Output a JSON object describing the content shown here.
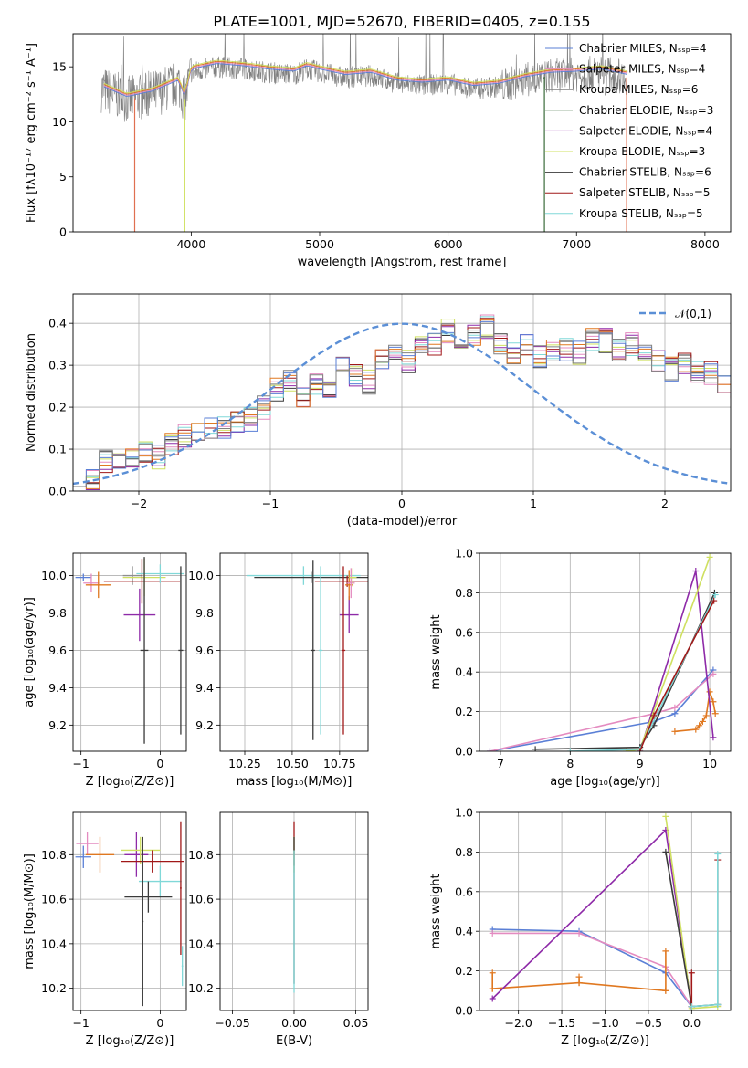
{
  "title": "PLATE=1001, MJD=52670, FIBERID=0405, z=0.155",
  "legend_colors": [
    "#5a7fd6",
    "#e48bc0",
    "#808080",
    "#3a6a3a",
    "#8e2aa8",
    "#cfe060",
    "#3a3a3a",
    "#a01818",
    "#80d8d8"
  ],
  "chart_data": [
    {
      "type": "line",
      "id": "spectrum",
      "xlabel": "wavelength [Angstrom, rest frame]",
      "ylabel": "Flux [fλ10⁻¹⁷ erg cm⁻² s⁻¹ A⁻¹]",
      "xlim": [
        3080,
        8200
      ],
      "ylim": [
        0,
        18
      ],
      "xticks": [
        "4000",
        "5000",
        "6000",
        "7000",
        "8000"
      ],
      "yticks": [
        "0",
        "5",
        "10",
        "15"
      ],
      "legend": {
        "placement": "upper-right",
        "entries": [
          "Chabrier MILES, Nₛₛₚ=4",
          "Salpeter MILES, Nₛₛₚ=4",
          "Kroupa MILES, Nₛₛₚ=6",
          "Chabrier ELODIE, Nₛₛₚ=3",
          "Salpeter ELODIE, Nₛₛₚ=4",
          "Kroupa ELODIE, Nₛₛₚ=3",
          "Chabrier STELIB, Nₛₛₚ=6",
          "Salpeter STELIB, Nₛₛₚ=5",
          "Kroupa STELIB, Nₛₛₚ=5"
        ]
      },
      "approx_continuum": {
        "x": [
          3300,
          3500,
          3700,
          3900,
          3950,
          4000,
          4200,
          4400,
          4600,
          4800,
          4900,
          5000,
          5200,
          5400,
          5600,
          5800,
          6000,
          6200,
          6400,
          6600,
          6800,
          7000,
          7200,
          7400
        ],
        "y": [
          13.0,
          12.0,
          12.5,
          13.5,
          12.0,
          14.5,
          15.0,
          14.8,
          14.5,
          14.3,
          14.8,
          14.5,
          14.0,
          14.2,
          13.5,
          13.3,
          13.5,
          13.0,
          13.2,
          13.8,
          14.2,
          14.3,
          14.5,
          14.0
        ]
      },
      "cutoffs": [
        3560,
        3950,
        6750,
        7390
      ]
    },
    {
      "type": "line",
      "id": "residual-histogram",
      "xlabel": "(data-model)/error",
      "ylabel": "Normed distribution",
      "xlim": [
        -2.5,
        2.5
      ],
      "ylim": [
        0,
        0.47
      ],
      "xticks": [
        "−2",
        "−1",
        "0",
        "1",
        "2"
      ],
      "yticks": [
        "0.0",
        "0.1",
        "0.2",
        "0.3",
        "0.4"
      ],
      "grid": true,
      "reference_curve": {
        "label": "𝒩(0,1)",
        "mean": 0,
        "sigma": 1,
        "style": "dashed",
        "color": "#5b8fd6"
      },
      "legend_placement": "upper-right",
      "histogram": {
        "bin_start": -2.5,
        "bin_width": 0.1,
        "values": [
          0.04,
          0.03,
          0.07,
          0.08,
          0.08,
          0.09,
          0.08,
          0.11,
          0.13,
          0.15,
          0.15,
          0.15,
          0.16,
          0.17,
          0.2,
          0.24,
          0.26,
          0.22,
          0.25,
          0.24,
          0.29,
          0.28,
          0.26,
          0.31,
          0.33,
          0.31,
          0.34,
          0.35,
          0.38,
          0.36,
          0.37,
          0.39,
          0.35,
          0.33,
          0.35,
          0.32,
          0.34,
          0.34,
          0.33,
          0.36,
          0.36,
          0.34,
          0.35,
          0.32,
          0.31,
          0.29,
          0.3,
          0.28,
          0.28,
          0.26,
          0.24,
          0.22,
          0.2,
          0.18,
          0.15,
          0.14,
          0.14,
          0.15,
          0.13,
          0.12,
          0.11,
          0.1,
          0.09,
          0.08,
          0.07,
          0.06,
          0.05,
          0.05,
          0.04,
          0.04
        ]
      }
    },
    {
      "type": "scatter",
      "id": "age-vs-Z",
      "xlabel": "Z [log₁₀(Z/Z⊙)]",
      "ylabel": "age  [log₁₀(age/yr)]",
      "xlim": [
        -1.1,
        0.33
      ],
      "ylim": [
        9.06,
        10.12
      ],
      "xticks": [
        "−1",
        "0"
      ],
      "yticks": [
        "9.2",
        "9.4",
        "9.6",
        "9.8",
        "10.0"
      ],
      "grid": true,
      "points": [
        {
          "x": -0.97,
          "y": 9.99,
          "xerr": 0.1,
          "yerr": 0.02,
          "color": "#5a7fd6"
        },
        {
          "x": -0.87,
          "y": 9.96,
          "xerr": 0.1,
          "yerr": 0.05,
          "color": "#e48bc0"
        },
        {
          "x": -0.78,
          "y": 9.95,
          "xerr": 0.16,
          "yerr": 0.07,
          "color": "#e07820"
        },
        {
          "x": -0.35,
          "y": 10.0,
          "xerr": 0.12,
          "yerr": 0.05,
          "color": "#8e8e8e"
        },
        {
          "x": -0.26,
          "y": 9.79,
          "xerr": 0.2,
          "yerr": 0.14,
          "color": "#8e2aa8"
        },
        {
          "x": -0.2,
          "y": 9.99,
          "xerr": 0.27,
          "yerr": 0.1,
          "color": "#cfe060"
        },
        {
          "x": -0.23,
          "y": 9.97,
          "xerr": 0.48,
          "yerr": 0.12,
          "color": "#a01818"
        },
        {
          "x": 0.0,
          "y": 10.01,
          "xerr": 0.3,
          "yerr": 0.05,
          "color": "#80d8d8"
        },
        {
          "x": -0.2,
          "y": 9.6,
          "xerr": 0.05,
          "yerr": 0.5,
          "color": "#3a3a3a"
        },
        {
          "x": 0.26,
          "y": 9.6,
          "xerr": 0.03,
          "yerr": 0.45,
          "color": "#3a3a3a"
        }
      ]
    },
    {
      "type": "scatter",
      "id": "age-vs-mass",
      "xlabel": "mass [log₁₀(M/M⊙)]",
      "xlim": [
        10.12,
        10.9
      ],
      "ylim": [
        9.06,
        10.12
      ],
      "xticks": [
        "10.25",
        "10.50",
        "10.75"
      ],
      "yticks": [
        "9.2",
        "9.4",
        "9.6",
        "9.8",
        "10.0"
      ],
      "grid": true,
      "points": [
        {
          "x": 10.56,
          "y": 10.0,
          "xerr": 0.3,
          "yerr": 0.05,
          "color": "#80d8d8"
        },
        {
          "x": 10.6,
          "y": 9.99,
          "xerr": 0.3,
          "yerr": 0.03,
          "color": "#3a3a3a"
        },
        {
          "x": 10.79,
          "y": 9.97,
          "xerr": 0.17,
          "yerr": 0.03,
          "color": "#a01818"
        },
        {
          "x": 10.8,
          "y": 9.79,
          "xerr": 0.05,
          "yerr": 0.1,
          "color": "#8e2aa8"
        },
        {
          "x": 10.8,
          "y": 9.95,
          "xerr": 0.02,
          "yerr": 0.08,
          "color": "#e07820"
        },
        {
          "x": 10.81,
          "y": 9.96,
          "xerr": 0.02,
          "yerr": 0.08,
          "color": "#e48bc0"
        },
        {
          "x": 10.82,
          "y": 9.99,
          "xerr": 0.02,
          "yerr": 0.05,
          "color": "#cfe060"
        },
        {
          "x": 10.61,
          "y": 9.6,
          "xerr": 0.01,
          "yerr": 0.48,
          "color": "#3a3a3a"
        },
        {
          "x": 10.77,
          "y": 9.6,
          "xerr": 0.01,
          "yerr": 0.45,
          "color": "#a01818"
        },
        {
          "x": 10.65,
          "y": 9.6,
          "xerr": 0.01,
          "yerr": 0.45,
          "color": "#80d8d8"
        }
      ]
    },
    {
      "type": "line",
      "id": "mass-weight-vs-age",
      "xlabel": "age  [log₁₀(age/yr)]",
      "ylabel": "mass weight",
      "xlim": [
        6.7,
        10.3
      ],
      "ylim": [
        0,
        1.0
      ],
      "xticks": [
        "7",
        "8",
        "9",
        "10"
      ],
      "yticks": [
        "0.0",
        "0.2",
        "0.4",
        "0.6",
        "0.8",
        "1.0"
      ],
      "grid": true,
      "series": [
        {
          "color": "#5a7fd6",
          "x": [
            6.85,
            9.2,
            9.5,
            10.05
          ],
          "y": [
            0.0,
            0.15,
            0.19,
            0.41
          ]
        },
        {
          "color": "#e48bc0",
          "x": [
            6.85,
            9.2,
            9.5,
            10.05
          ],
          "y": [
            0.0,
            0.19,
            0.22,
            0.39
          ]
        },
        {
          "color": "#e07820",
          "x": [
            9.5,
            9.8,
            9.85,
            9.9,
            9.95,
            10.0,
            10.05,
            10.08
          ],
          "y": [
            0.1,
            0.11,
            0.13,
            0.15,
            0.18,
            0.3,
            0.25,
            0.19
          ]
        },
        {
          "color": "#8e2aa8",
          "x": [
            9.0,
            9.8,
            10.05
          ],
          "y": [
            0.0,
            0.91,
            0.07
          ]
        },
        {
          "color": "#cfe060",
          "x": [
            8.8,
            9.0,
            10.0
          ],
          "y": [
            0.0,
            0.01,
            0.98
          ]
        },
        {
          "color": "#3a3a3a",
          "x": [
            7.5,
            9.0,
            9.2,
            10.07
          ],
          "y": [
            0.01,
            0.02,
            0.13,
            0.8
          ]
        },
        {
          "color": "#80d8d8",
          "x": [
            8.0,
            9.0,
            10.08
          ],
          "y": [
            0.0,
            0.01,
            0.79
          ]
        },
        {
          "color": "#a01818",
          "x": [
            9.0,
            9.2,
            10.06
          ],
          "y": [
            0.0,
            0.18,
            0.76
          ]
        }
      ]
    },
    {
      "type": "scatter",
      "id": "mass-vs-Z",
      "xlabel": "Z [log₁₀(Z/Z⊙)]",
      "ylabel": "mass [log₁₀(M/M⊙)]",
      "xlim": [
        -1.1,
        0.33
      ],
      "ylim": [
        10.1,
        10.99
      ],
      "xticks": [
        "−1",
        "0"
      ],
      "yticks": [
        "10.2",
        "10.4",
        "10.6",
        "10.8"
      ],
      "grid": true,
      "points": [
        {
          "x": -0.97,
          "y": 10.79,
          "xerr": 0.1,
          "yerr": 0.05,
          "color": "#5a7fd6"
        },
        {
          "x": -0.92,
          "y": 10.85,
          "xerr": 0.14,
          "yerr": 0.05,
          "color": "#e48bc0"
        },
        {
          "x": -0.76,
          "y": 10.8,
          "xerr": 0.18,
          "yerr": 0.08,
          "color": "#e07820"
        },
        {
          "x": -0.3,
          "y": 10.8,
          "xerr": 0.15,
          "yerr": 0.1,
          "color": "#8e2aa8"
        },
        {
          "x": -0.25,
          "y": 10.82,
          "xerr": 0.25,
          "yerr": 0.06,
          "color": "#cfe060"
        },
        {
          "x": -0.1,
          "y": 10.77,
          "xerr": 0.4,
          "yerr": 0.05,
          "color": "#a01818"
        },
        {
          "x": 0.0,
          "y": 10.68,
          "xerr": 0.27,
          "yerr": 0.07,
          "color": "#80d8d8"
        },
        {
          "x": -0.15,
          "y": 10.61,
          "xerr": 0.3,
          "yerr": 0.07,
          "color": "#3a3a3a"
        },
        {
          "x": -0.22,
          "y": 10.5,
          "xerr": 0.01,
          "yerr": 0.38,
          "color": "#3a3a3a"
        },
        {
          "x": 0.26,
          "y": 10.65,
          "xerr": 0.01,
          "yerr": 0.3,
          "color": "#a01818"
        },
        {
          "x": 0.28,
          "y": 10.3,
          "xerr": 0.01,
          "yerr": 0.09,
          "color": "#80d8d8"
        }
      ]
    },
    {
      "type": "scatter",
      "id": "mass-vs-ebv",
      "xlabel": "E(B-V)",
      "xlim": [
        -0.06,
        0.06
      ],
      "ylim": [
        10.1,
        10.99
      ],
      "xticks": [
        "−0.05",
        "0.00",
        "0.05"
      ],
      "yticks": [
        "10.2",
        "10.4",
        "10.6",
        "10.8"
      ],
      "grid": true,
      "points": [
        {
          "x": 0.0,
          "y": 10.85,
          "xerr": 0.0,
          "yerr": 0.1,
          "color": "#a01818"
        },
        {
          "x": 0.0,
          "y": 10.8,
          "xerr": 0.0,
          "yerr": 0.08,
          "color": "#cfe060"
        },
        {
          "x": 0.0,
          "y": 10.55,
          "xerr": 0.0,
          "yerr": 0.33,
          "color": "#3a3a3a"
        },
        {
          "x": 0.0,
          "y": 10.5,
          "xerr": 0.0,
          "yerr": 0.32,
          "color": "#80d8d8"
        }
      ]
    },
    {
      "type": "line",
      "id": "mass-weight-vs-Z",
      "xlabel": "Z [log₁₀(Z/Z⊙)]",
      "ylabel": "mass weight",
      "xlim": [
        -2.45,
        0.45
      ],
      "ylim": [
        0,
        1.0
      ],
      "xticks": [
        "−2.0",
        "−1.5",
        "−1.0",
        "−0.5",
        "0.0"
      ],
      "yticks": [
        "0.0",
        "0.2",
        "0.4",
        "0.6",
        "0.8",
        "1.0"
      ],
      "grid": true,
      "series": [
        {
          "color": "#5a7fd6",
          "x": [
            -2.3,
            -1.3,
            -0.3,
            0.0
          ],
          "y": [
            0.41,
            0.4,
            0.19,
            0.02
          ]
        },
        {
          "color": "#e48bc0",
          "x": [
            -2.3,
            -1.3,
            -0.3,
            0.0
          ],
          "y": [
            0.39,
            0.39,
            0.22,
            0.02
          ]
        },
        {
          "color": "#e07820",
          "x": [
            -2.3,
            -1.3,
            -0.3
          ],
          "y": [
            0.11,
            0.14,
            0.1
          ]
        },
        {
          "color": "#e07820",
          "x": [
            -2.3,
            -2.3
          ],
          "y": [
            0.11,
            0.19
          ]
        },
        {
          "color": "#e07820",
          "x": [
            -1.3,
            -1.3
          ],
          "y": [
            0.14,
            0.17
          ]
        },
        {
          "color": "#e07820",
          "x": [
            -0.3,
            -0.3
          ],
          "y": [
            0.1,
            0.3
          ]
        },
        {
          "color": "#8e2aa8",
          "x": [
            -2.3,
            -0.3,
            0.0
          ],
          "y": [
            0.06,
            0.91,
            0.02
          ]
        },
        {
          "color": "#cfe060",
          "x": [
            -0.3,
            0.0,
            0.3
          ],
          "y": [
            0.98,
            0.01,
            0.02
          ]
        },
        {
          "color": "#3a3a3a",
          "x": [
            -0.3,
            0.0,
            0.3
          ],
          "y": [
            0.8,
            0.02,
            0.03
          ]
        },
        {
          "color": "#a01818",
          "x": [
            0.0,
            0.0
          ],
          "y": [
            0.02,
            0.19
          ]
        },
        {
          "color": "#a01818",
          "x": [
            0.3,
            0.3
          ],
          "y": [
            0.03,
            0.76
          ]
        },
        {
          "color": "#80d8d8",
          "x": [
            0.3,
            0.3
          ],
          "y": [
            0.03,
            0.79
          ]
        },
        {
          "color": "#80d8d8",
          "x": [
            0.0,
            0.3
          ],
          "y": [
            0.02,
            0.03
          ]
        }
      ]
    }
  ]
}
